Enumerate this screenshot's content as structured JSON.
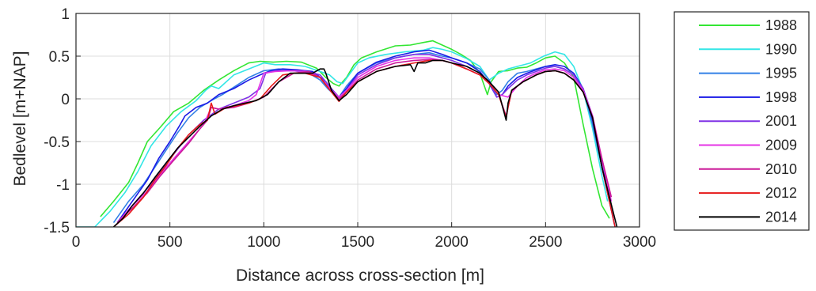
{
  "chart_data": {
    "type": "line",
    "title": "",
    "xlabel": "Distance across cross-section [m]",
    "ylabel": "Bedlevel [m+NAP]",
    "xlim": [
      0,
      3000
    ],
    "ylim": [
      -1.5,
      1
    ],
    "xticks": [
      "0",
      "500",
      "1000",
      "1500",
      "2000",
      "2500",
      "3000"
    ],
    "yticks": [
      "-1.5",
      "-1",
      "-0.5",
      "0",
      "0.5",
      "1"
    ],
    "grid": true,
    "legend_position": "outside-right",
    "series": [
      {
        "name": "1988",
        "color": "#33e633",
        "x": [
          130,
          200,
          280,
          330,
          380,
          450,
          520,
          600,
          680,
          760,
          840,
          920,
          980,
          1050,
          1120,
          1200,
          1280,
          1330,
          1370,
          1400,
          1440,
          1480,
          1520,
          1600,
          1700,
          1780,
          1850,
          1900,
          1950,
          2000,
          2050,
          2100,
          2150,
          2190,
          2210,
          2250,
          2300,
          2350,
          2400,
          2450,
          2500,
          2550,
          2600,
          2650,
          2700,
          2750,
          2800,
          2840
        ],
        "y": [
          -1.38,
          -1.2,
          -0.98,
          -0.75,
          -0.5,
          -0.33,
          -0.15,
          -0.05,
          0.1,
          0.22,
          0.33,
          0.42,
          0.44,
          0.43,
          0.44,
          0.43,
          0.36,
          0.25,
          0.18,
          0.15,
          0.25,
          0.4,
          0.48,
          0.55,
          0.62,
          0.63,
          0.66,
          0.68,
          0.63,
          0.58,
          0.52,
          0.45,
          0.3,
          0.05,
          0.2,
          0.32,
          0.33,
          0.36,
          0.37,
          0.42,
          0.48,
          0.5,
          0.42,
          0.25,
          -0.3,
          -0.82,
          -1.25,
          -1.4
        ]
      },
      {
        "name": "1990",
        "color": "#33e6e6",
        "x": [
          0,
          100,
          180,
          260,
          330,
          400,
          480,
          560,
          640,
          690,
          720,
          760,
          840,
          920,
          1000,
          1060,
          1140,
          1220,
          1300,
          1350,
          1390,
          1420,
          1460,
          1500,
          1560,
          1650,
          1750,
          1850,
          1900,
          1950,
          2000,
          2080,
          2150,
          2200,
          2250,
          2300,
          2350,
          2420,
          2490,
          2550,
          2600,
          2650,
          2700,
          2750,
          2800,
          2830
        ],
        "y": [
          -1.5,
          -1.5,
          -1.32,
          -1.1,
          -0.85,
          -0.55,
          -0.32,
          -0.15,
          -0.02,
          0.1,
          0.15,
          0.12,
          0.28,
          0.35,
          0.42,
          0.4,
          0.4,
          0.38,
          0.32,
          0.28,
          0.2,
          0.18,
          0.3,
          0.42,
          0.48,
          0.52,
          0.55,
          0.57,
          0.6,
          0.58,
          0.55,
          0.47,
          0.38,
          0.22,
          0.3,
          0.35,
          0.38,
          0.42,
          0.5,
          0.55,
          0.52,
          0.38,
          0.1,
          -0.35,
          -0.9,
          -1.2
        ]
      },
      {
        "name": "1995",
        "color": "#3380e6",
        "x": [
          200,
          280,
          360,
          420,
          480,
          540,
          600,
          660,
          720,
          780,
          850,
          920,
          1000,
          1080,
          1160,
          1240,
          1300,
          1340,
          1380,
          1400,
          1440,
          1500,
          1600,
          1700,
          1800,
          1880,
          1950,
          2000,
          2080,
          2150,
          2200,
          2240,
          2270,
          2300,
          2350,
          2400,
          2450,
          2500,
          2550,
          2600,
          2650,
          2700,
          2750,
          2800,
          2850
        ],
        "y": [
          -1.45,
          -1.2,
          -1.0,
          -0.8,
          -0.6,
          -0.4,
          -0.22,
          -0.1,
          -0.02,
          0.05,
          0.15,
          0.25,
          0.33,
          0.35,
          0.33,
          0.3,
          0.22,
          0.12,
          0.04,
          0.02,
          0.15,
          0.3,
          0.42,
          0.48,
          0.52,
          0.54,
          0.5,
          0.48,
          0.42,
          0.35,
          0.22,
          0.05,
          0.1,
          0.2,
          0.3,
          0.32,
          0.35,
          0.38,
          0.38,
          0.35,
          0.28,
          0.12,
          -0.3,
          -0.8,
          -1.3
        ]
      },
      {
        "name": "1998",
        "color": "#1a1ae6",
        "x": [
          220,
          300,
          380,
          440,
          500,
          550,
          580,
          640,
          700,
          760,
          840,
          920,
          1000,
          1040,
          1100,
          1180,
          1260,
          1330,
          1370,
          1400,
          1440,
          1500,
          1600,
          1700,
          1800,
          1880,
          1950,
          2000,
          2080,
          2150,
          2200,
          2240,
          2270,
          2300,
          2350,
          2400,
          2450,
          2500,
          2550,
          2600,
          2650,
          2700,
          2750,
          2800,
          2870
        ],
        "y": [
          -1.45,
          -1.2,
          -0.95,
          -0.7,
          -0.5,
          -0.32,
          -0.2,
          -0.1,
          -0.05,
          0.05,
          0.12,
          0.22,
          0.3,
          0.33,
          0.35,
          0.34,
          0.32,
          0.2,
          0.08,
          0.02,
          0.12,
          0.3,
          0.43,
          0.5,
          0.55,
          0.57,
          0.52,
          0.48,
          0.42,
          0.32,
          0.18,
          0.02,
          0.05,
          0.15,
          0.25,
          0.3,
          0.34,
          0.38,
          0.4,
          0.38,
          0.3,
          0.12,
          -0.25,
          -0.8,
          -1.5
        ]
      },
      {
        "name": "2001",
        "color": "#8033e6",
        "x": [
          220,
          300,
          380,
          450,
          520,
          600,
          680,
          760,
          840,
          920,
          980,
          1010,
          1060,
          1140,
          1220,
          1300,
          1360,
          1400,
          1440,
          1500,
          1600,
          1700,
          1800,
          1880,
          1950,
          2000,
          2080,
          2150,
          2200,
          2240,
          2270,
          2300,
          2350,
          2400,
          2450,
          2500,
          2550,
          2600,
          2650,
          2700,
          2750,
          2800,
          2860
        ],
        "y": [
          -1.45,
          -1.25,
          -1.05,
          -0.85,
          -0.65,
          -0.42,
          -0.25,
          -0.12,
          -0.05,
          0.02,
          0.12,
          0.3,
          0.33,
          0.33,
          0.33,
          0.28,
          0.12,
          0.02,
          0.1,
          0.28,
          0.4,
          0.48,
          0.52,
          0.52,
          0.48,
          0.45,
          0.38,
          0.3,
          0.2,
          0.02,
          0.05,
          0.12,
          0.22,
          0.28,
          0.32,
          0.36,
          0.38,
          0.35,
          0.28,
          0.12,
          -0.2,
          -0.75,
          -1.4
        ]
      },
      {
        "name": "2009",
        "color": "#e633e6",
        "x": [
          220,
          300,
          380,
          450,
          520,
          600,
          680,
          720,
          760,
          840,
          920,
          960,
          1000,
          1060,
          1140,
          1220,
          1300,
          1360,
          1400,
          1440,
          1500,
          1600,
          1700,
          1800,
          1880,
          1950,
          2000,
          2080,
          2150,
          2200,
          2250,
          2300,
          2350,
          2400,
          2450,
          2500,
          2550,
          2600,
          2650,
          2700,
          2750,
          2800,
          2850
        ],
        "y": [
          -1.45,
          -1.25,
          -1.08,
          -0.88,
          -0.7,
          -0.5,
          -0.3,
          -0.1,
          -0.12,
          -0.08,
          -0.02,
          0.05,
          0.3,
          0.32,
          0.33,
          0.32,
          0.25,
          0.1,
          0.02,
          0.1,
          0.25,
          0.38,
          0.45,
          0.48,
          0.48,
          0.45,
          0.42,
          0.35,
          0.28,
          0.18,
          0.05,
          0.02,
          0.15,
          0.25,
          0.3,
          0.34,
          0.35,
          0.33,
          0.25,
          0.1,
          -0.2,
          -0.7,
          -1.2
        ]
      },
      {
        "name": "2010",
        "color": "#cc1a99",
        "x": [
          220,
          300,
          380,
          450,
          520,
          600,
          660,
          700,
          720,
          760,
          840,
          920,
          1000,
          1080,
          1160,
          1240,
          1300,
          1360,
          1400,
          1440,
          1500,
          1600,
          1700,
          1800,
          1880,
          1950,
          2000,
          2080,
          2150,
          2200,
          2250,
          2290,
          2300,
          2320,
          2380,
          2450,
          2500,
          2550,
          2600,
          2650,
          2700,
          2750,
          2800,
          2850
        ],
        "y": [
          -1.45,
          -1.28,
          -1.1,
          -0.9,
          -0.72,
          -0.52,
          -0.35,
          -0.25,
          -0.1,
          -0.12,
          -0.1,
          -0.05,
          0.02,
          0.2,
          0.3,
          0.32,
          0.25,
          0.08,
          0.0,
          0.08,
          0.22,
          0.35,
          0.42,
          0.45,
          0.46,
          0.45,
          0.42,
          0.35,
          0.28,
          0.18,
          0.05,
          -0.2,
          -0.1,
          0.1,
          0.2,
          0.28,
          0.32,
          0.33,
          0.3,
          0.22,
          0.08,
          -0.22,
          -0.7,
          -1.15
        ]
      },
      {
        "name": "2012",
        "color": "#e61a1a",
        "x": [
          200,
          280,
          360,
          420,
          480,
          540,
          600,
          660,
          700,
          720,
          740,
          800,
          860,
          920,
          980,
          1040,
          1100,
          1160,
          1220,
          1300,
          1360,
          1400,
          1440,
          1500,
          1600,
          1700,
          1800,
          1880,
          1950,
          2000,
          2080,
          2150,
          2200,
          2250,
          2290,
          2300,
          2320,
          2380,
          2450,
          2500,
          2550,
          2600,
          2650,
          2700,
          2750,
          2800,
          2870
        ],
        "y": [
          -1.5,
          -1.35,
          -1.15,
          -0.95,
          -0.78,
          -0.58,
          -0.42,
          -0.3,
          -0.25,
          -0.05,
          -0.18,
          -0.1,
          -0.08,
          -0.05,
          0.0,
          0.15,
          0.28,
          0.3,
          0.3,
          0.25,
          0.08,
          -0.03,
          0.08,
          0.2,
          0.32,
          0.38,
          0.42,
          0.45,
          0.45,
          0.42,
          0.35,
          0.28,
          0.18,
          0.05,
          -0.22,
          -0.1,
          0.1,
          0.2,
          0.28,
          0.32,
          0.33,
          0.3,
          0.22,
          0.08,
          -0.22,
          -0.8,
          -1.5
        ]
      },
      {
        "name": "2014",
        "color": "#000000",
        "x": [
          200,
          250,
          300,
          360,
          420,
          480,
          540,
          600,
          660,
          720,
          780,
          840,
          900,
          960,
          1020,
          1080,
          1140,
          1200,
          1260,
          1300,
          1320,
          1330,
          1360,
          1400,
          1440,
          1500,
          1600,
          1700,
          1780,
          1800,
          1820,
          1860,
          1900,
          1950,
          2000,
          2080,
          2150,
          2200,
          2250,
          2290,
          2300,
          2320,
          2380,
          2450,
          2500,
          2550,
          2600,
          2650,
          2700,
          2750,
          2800,
          2880
        ],
        "y": [
          -1.5,
          -1.4,
          -1.25,
          -1.1,
          -0.92,
          -0.75,
          -0.58,
          -0.45,
          -0.32,
          -0.2,
          -0.12,
          -0.08,
          -0.05,
          -0.02,
          0.05,
          0.2,
          0.3,
          0.3,
          0.3,
          0.35,
          0.35,
          0.3,
          0.1,
          -0.02,
          0.05,
          0.2,
          0.32,
          0.38,
          0.4,
          0.32,
          0.42,
          0.42,
          0.45,
          0.45,
          0.42,
          0.38,
          0.3,
          0.2,
          0.08,
          -0.25,
          -0.05,
          0.1,
          0.2,
          0.28,
          0.32,
          0.33,
          0.3,
          0.22,
          0.08,
          -0.22,
          -0.8,
          -1.5
        ]
      }
    ]
  }
}
